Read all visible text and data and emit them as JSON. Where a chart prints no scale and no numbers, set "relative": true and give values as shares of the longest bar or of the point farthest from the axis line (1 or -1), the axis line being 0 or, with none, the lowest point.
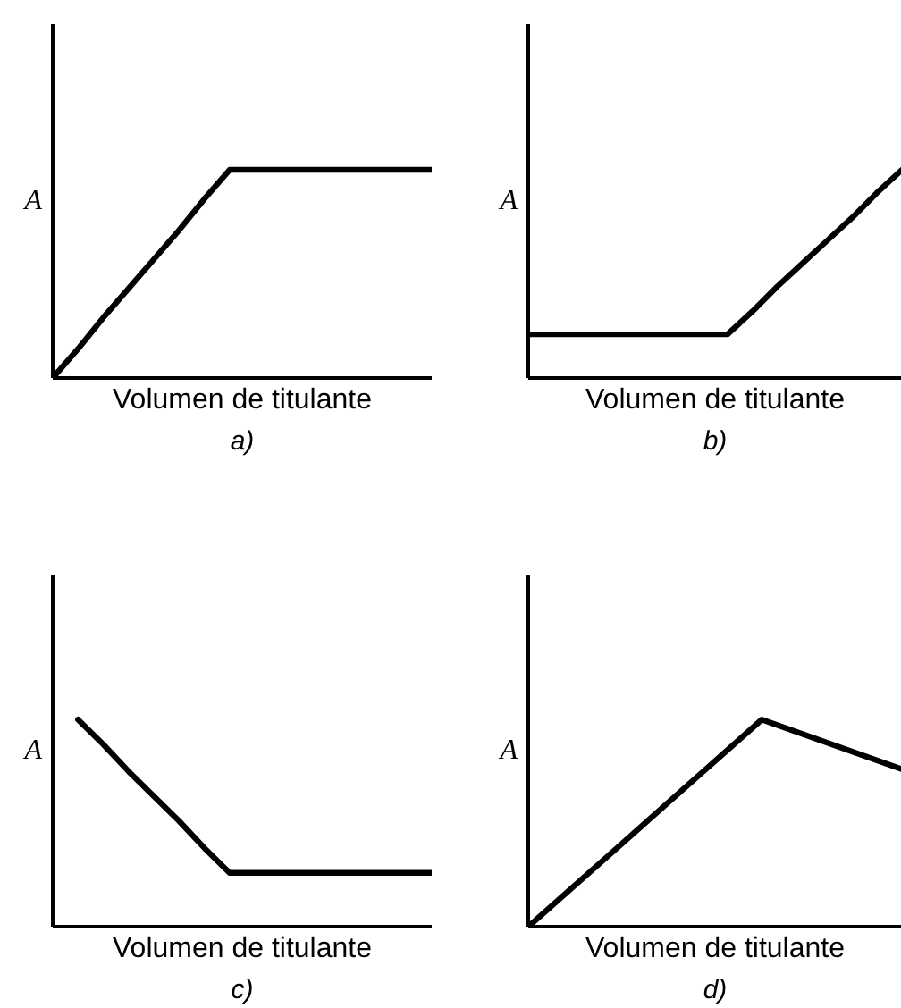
{
  "chart_data": [
    {
      "type": "line",
      "title": "a)",
      "xlabel": "Volumen de titulante",
      "ylabel": "A",
      "relative": true,
      "categories": [
        null,
        null,
        null,
        null,
        null,
        null,
        null,
        null,
        null,
        null,
        null,
        null,
        null,
        null,
        null,
        null
      ],
      "series": [
        {
          "color": "#000000",
          "values": [
            0,
            0.14,
            0.29,
            0.43,
            0.57,
            0.71,
            0.86,
            1,
            1,
            1,
            1,
            1,
            1,
            1,
            1,
            1
          ]
        }
      ]
    },
    {
      "type": "line",
      "title": "b)",
      "xlabel": "Volumen de titulante",
      "ylabel": "A",
      "relative": true,
      "categories": [
        null,
        null,
        null,
        null,
        null,
        null,
        null,
        null,
        null,
        null,
        null,
        null,
        null,
        null,
        null,
        null
      ],
      "series": [
        {
          "color": "#000000",
          "values": [
            0.21,
            0.21,
            0.21,
            0.21,
            0.21,
            0.21,
            0.21,
            0.21,
            0.21,
            0.32,
            0.44,
            0.55,
            0.66,
            0.77,
            0.89,
            1
          ]
        }
      ]
    },
    {
      "type": "line",
      "title": "c)",
      "xlabel": "Volumen de titulante",
      "ylabel": "A",
      "relative": true,
      "categories": [
        null,
        null,
        null,
        null,
        null,
        null,
        null,
        null,
        null,
        null,
        null,
        null,
        null,
        null,
        null,
        null
      ],
      "series": [
        {
          "color": "#000000",
          "values": [
            null,
            1,
            0.88,
            0.75,
            0.63,
            0.51,
            0.38,
            0.26,
            0.26,
            0.26,
            0.26,
            0.26,
            0.26,
            0.26,
            0.26,
            0.26
          ]
        }
      ]
    },
    {
      "type": "line",
      "title": "d)",
      "xlabel": "Volumen de titulante",
      "ylabel": "A",
      "relative": true,
      "categories": [
        null,
        null,
        null,
        null,
        null,
        null,
        null,
        null,
        null
      ],
      "series": [
        {
          "color": "#000000",
          "values": [
            0,
            0.2,
            0.4,
            0.6,
            0.8,
            1,
            0.92,
            0.84,
            0.76
          ]
        }
      ]
    }
  ]
}
